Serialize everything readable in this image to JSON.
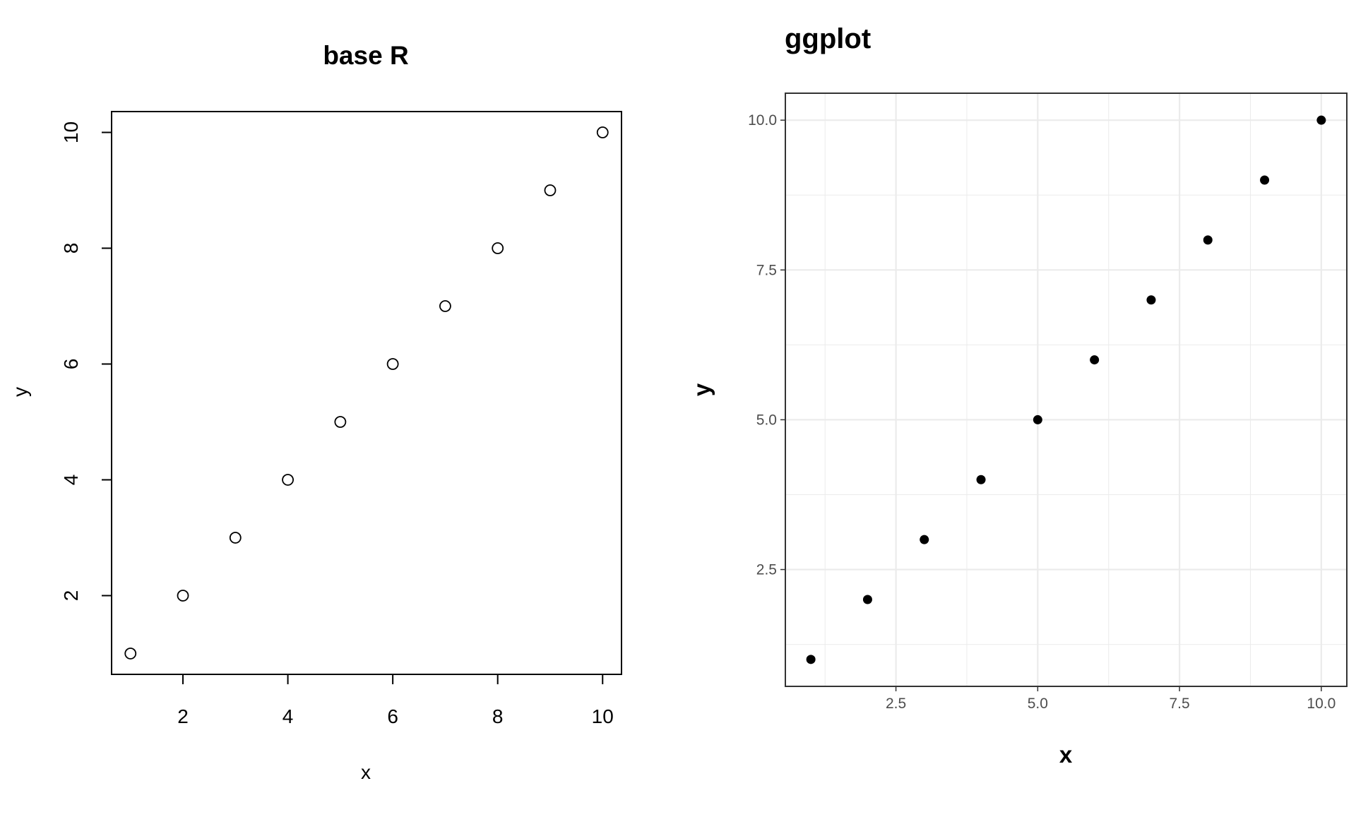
{
  "chart_data": [
    {
      "type": "scatter",
      "style": "base R",
      "title": "base R",
      "xlabel": "x",
      "ylabel": "y",
      "x": [
        1,
        2,
        3,
        4,
        5,
        6,
        7,
        8,
        9,
        10
      ],
      "y": [
        1,
        2,
        3,
        4,
        5,
        6,
        7,
        8,
        9,
        10
      ],
      "xlim": [
        0.64,
        10.36
      ],
      "ylim": [
        0.64,
        10.36
      ],
      "xticks": [
        2,
        4,
        6,
        8,
        10
      ],
      "yticks": [
        2,
        4,
        6,
        8,
        10
      ],
      "xtick_labels": [
        "2",
        "4",
        "6",
        "8",
        "10"
      ],
      "ytick_labels": [
        "2",
        "4",
        "6",
        "8",
        "10"
      ],
      "marker": "open-circle",
      "grid": false,
      "colors": {
        "marker": "#000000",
        "frame": "#000000"
      }
    },
    {
      "type": "scatter",
      "style": "ggplot",
      "title": "ggplot",
      "xlabel": "x",
      "ylabel": "y",
      "x": [
        1,
        2,
        3,
        4,
        5,
        6,
        7,
        8,
        9,
        10
      ],
      "y": [
        1,
        2,
        3,
        4,
        5,
        6,
        7,
        8,
        9,
        10
      ],
      "xlim": [
        0.55,
        10.45
      ],
      "ylim": [
        0.55,
        10.45
      ],
      "xticks": [
        2.5,
        5.0,
        7.5,
        10.0
      ],
      "yticks": [
        2.5,
        5.0,
        7.5,
        10.0
      ],
      "xtick_labels": [
        "2.5",
        "5.0",
        "7.5",
        "10.0"
      ],
      "ytick_labels": [
        "2.5",
        "5.0",
        "7.5",
        "10.0"
      ],
      "minor_ticks": [
        1.25,
        3.75,
        6.25,
        8.75
      ],
      "marker": "filled-circle",
      "grid": true,
      "colors": {
        "marker": "#000000",
        "frame": "#333333",
        "grid": "#ebebeb",
        "tick_label": "#4d4d4d"
      }
    }
  ]
}
